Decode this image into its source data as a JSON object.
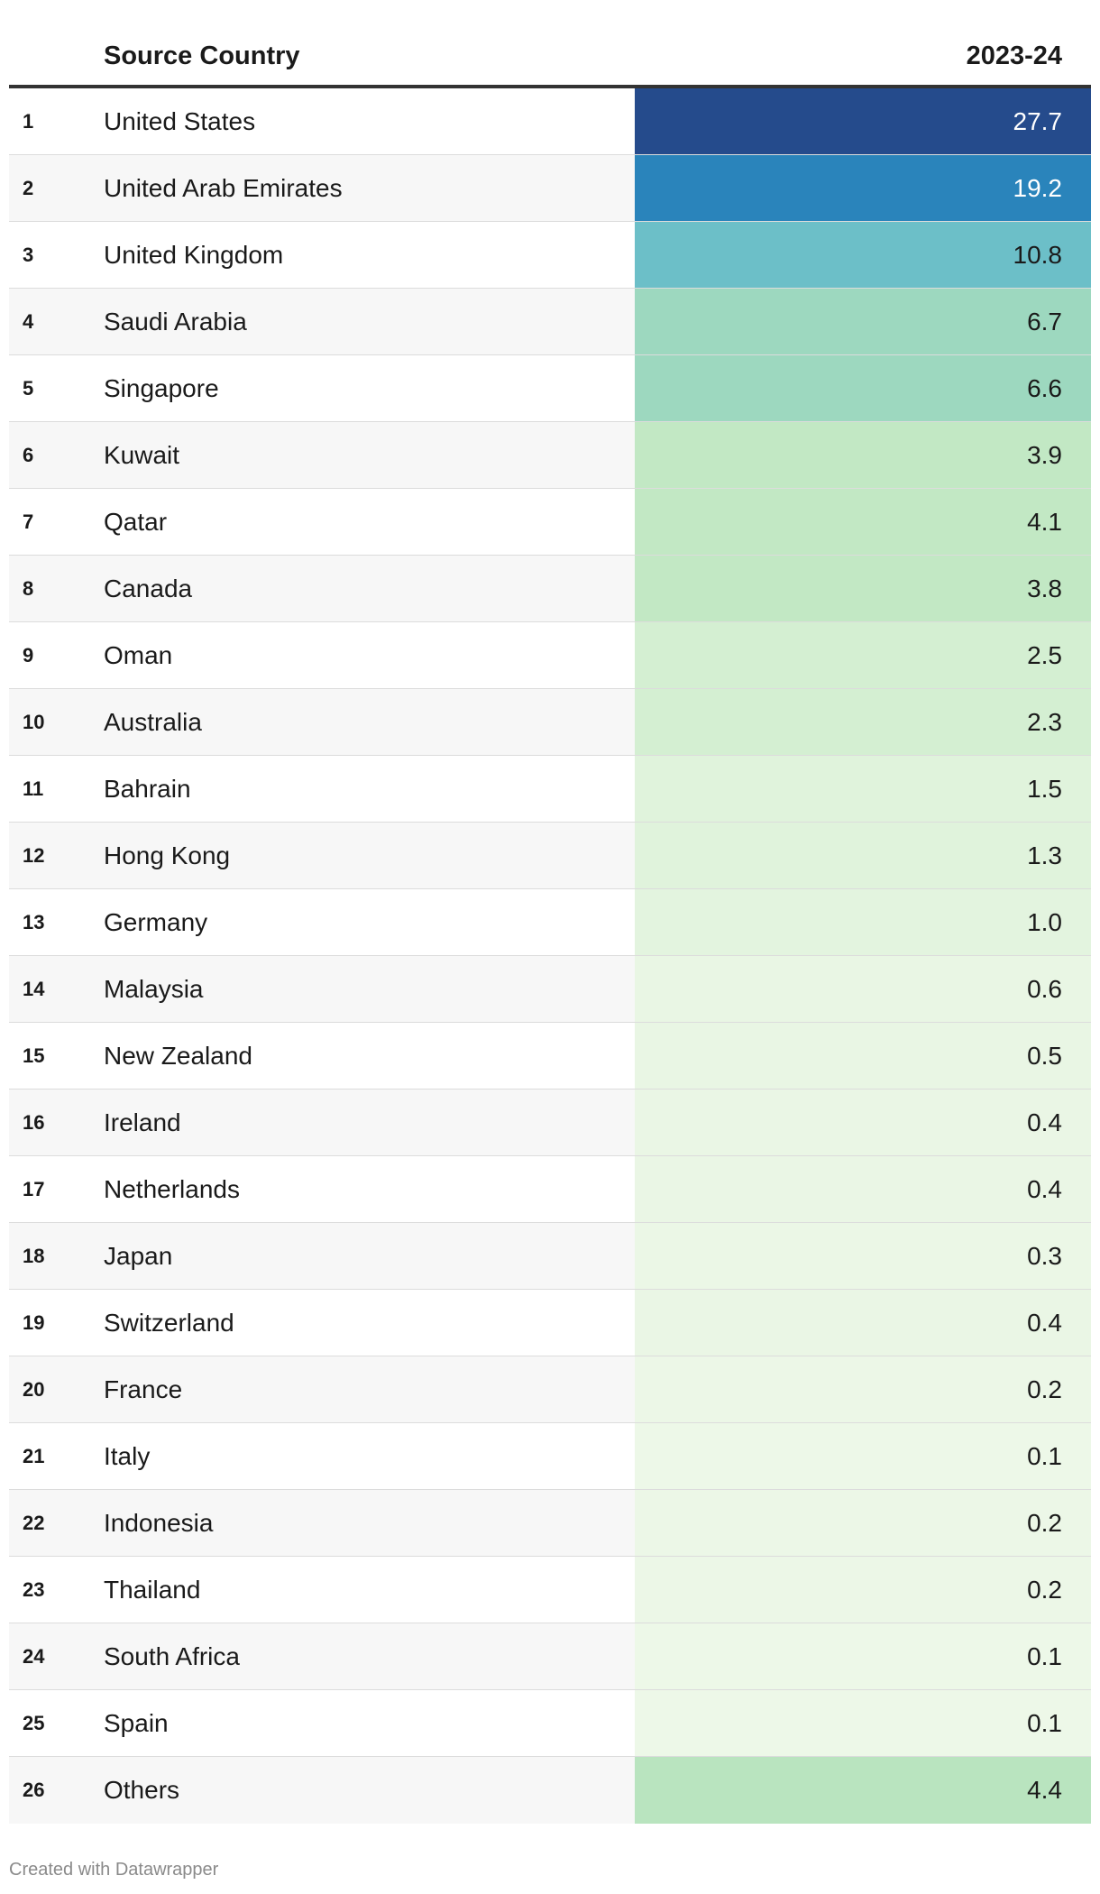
{
  "chart_data": {
    "type": "table",
    "columns": [
      "",
      "Source Country",
      "2023-24"
    ],
    "rows": [
      {
        "rank": "1",
        "country": "United States",
        "value": "27.7",
        "color": "#254b8c",
        "text_color": "#ffffff"
      },
      {
        "rank": "2",
        "country": "United Arab Emirates",
        "value": "19.2",
        "color": "#2a84bb",
        "text_color": "#ffffff"
      },
      {
        "rank": "3",
        "country": "United Kingdom",
        "value": "10.8",
        "color": "#6cbfc8",
        "text_color": "#1a1a1a"
      },
      {
        "rank": "4",
        "country": "Saudi Arabia",
        "value": "6.7",
        "color": "#9dd8bf",
        "text_color": "#1a1a1a"
      },
      {
        "rank": "5",
        "country": "Singapore",
        "value": "6.6",
        "color": "#9dd8bf",
        "text_color": "#1a1a1a"
      },
      {
        "rank": "6",
        "country": "Kuwait",
        "value": "3.9",
        "color": "#c2e8c4",
        "text_color": "#1a1a1a"
      },
      {
        "rank": "7",
        "country": "Qatar",
        "value": "4.1",
        "color": "#c2e8c4",
        "text_color": "#1a1a1a"
      },
      {
        "rank": "8",
        "country": "Canada",
        "value": "3.8",
        "color": "#c2e8c4",
        "text_color": "#1a1a1a"
      },
      {
        "rank": "9",
        "country": "Oman",
        "value": "2.5",
        "color": "#d4efd2",
        "text_color": "#1a1a1a"
      },
      {
        "rank": "10",
        "country": "Australia",
        "value": "2.3",
        "color": "#d4efd2",
        "text_color": "#1a1a1a"
      },
      {
        "rank": "11",
        "country": "Bahrain",
        "value": "1.5",
        "color": "#e0f3dc",
        "text_color": "#1a1a1a"
      },
      {
        "rank": "12",
        "country": "Hong Kong",
        "value": "1.3",
        "color": "#e0f3dc",
        "text_color": "#1a1a1a"
      },
      {
        "rank": "13",
        "country": "Germany",
        "value": "1.0",
        "color": "#e3f4df",
        "text_color": "#1a1a1a"
      },
      {
        "rank": "14",
        "country": "Malaysia",
        "value": "0.6",
        "color": "#e9f6e4",
        "text_color": "#1a1a1a"
      },
      {
        "rank": "15",
        "country": "New Zealand",
        "value": "0.5",
        "color": "#e9f6e4",
        "text_color": "#1a1a1a"
      },
      {
        "rank": "16",
        "country": "Ireland",
        "value": "0.4",
        "color": "#eaf6e5",
        "text_color": "#1a1a1a"
      },
      {
        "rank": "17",
        "country": "Netherlands",
        "value": "0.4",
        "color": "#eaf6e5",
        "text_color": "#1a1a1a"
      },
      {
        "rank": "18",
        "country": "Japan",
        "value": "0.3",
        "color": "#ebf7e6",
        "text_color": "#1a1a1a"
      },
      {
        "rank": "19",
        "country": "Switzerland",
        "value": "0.4",
        "color": "#eaf6e5",
        "text_color": "#1a1a1a"
      },
      {
        "rank": "20",
        "country": "France",
        "value": "0.2",
        "color": "#ecf7e7",
        "text_color": "#1a1a1a"
      },
      {
        "rank": "21",
        "country": "Italy",
        "value": "0.1",
        "color": "#edf8e8",
        "text_color": "#1a1a1a"
      },
      {
        "rank": "22",
        "country": "Indonesia",
        "value": "0.2",
        "color": "#ecf7e7",
        "text_color": "#1a1a1a"
      },
      {
        "rank": "23",
        "country": "Thailand",
        "value": "0.2",
        "color": "#ecf7e7",
        "text_color": "#1a1a1a"
      },
      {
        "rank": "24",
        "country": "South Africa",
        "value": "0.1",
        "color": "#edf8e8",
        "text_color": "#1a1a1a"
      },
      {
        "rank": "25",
        "country": "Spain",
        "value": "0.1",
        "color": "#edf8e8",
        "text_color": "#1a1a1a"
      },
      {
        "rank": "26",
        "country": "Others",
        "value": "4.4",
        "color": "#b9e4bf",
        "text_color": "#1a1a1a"
      }
    ]
  },
  "footer": {
    "credit": "Created with Datawrapper"
  }
}
